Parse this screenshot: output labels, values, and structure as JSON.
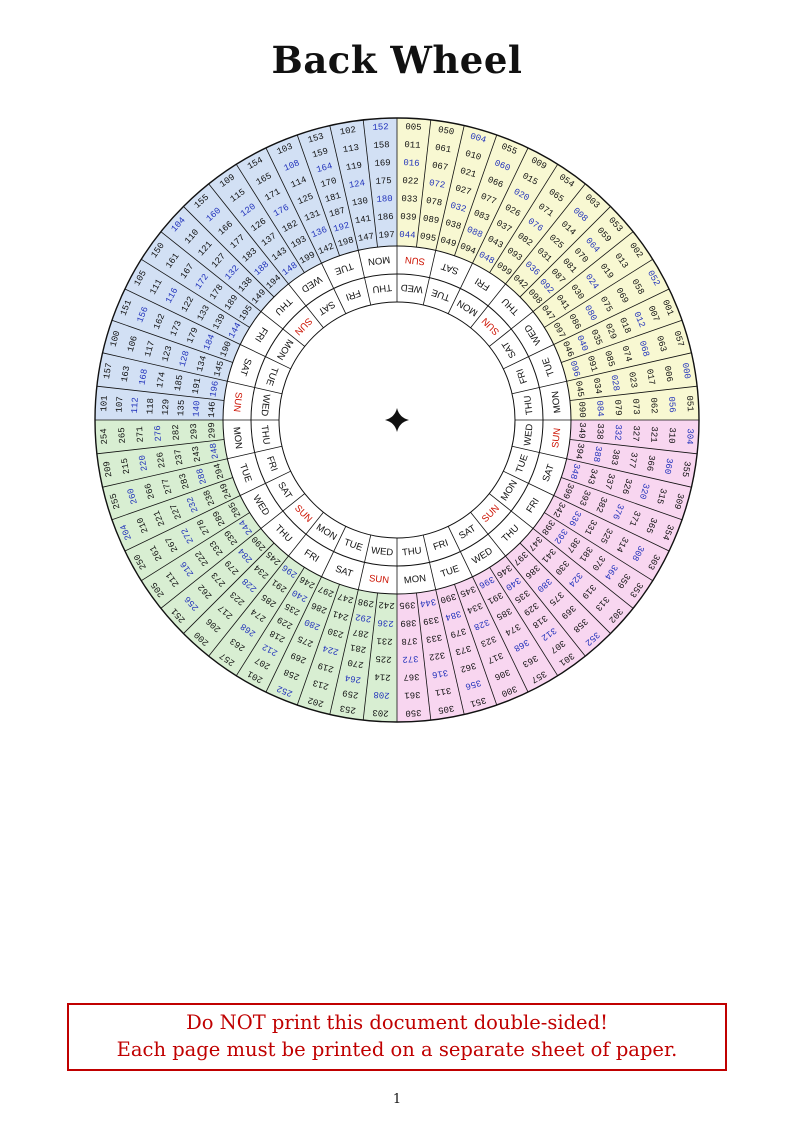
{
  "title": "Back Wheel",
  "page_number": "1",
  "warning": {
    "line1": "Do NOT print this document double-sided!",
    "line2": "Each page must be printed on a separate sheet of paper."
  },
  "wheel": {
    "colors": {
      "ink": "#111111",
      "sun": "#cc1100",
      "leap_year": "#2233bb",
      "quadrant_yellow": "#f8f8d2",
      "quadrant_pink": "#f8d6f0",
      "quadrant_green": "#d8eed2",
      "quadrant_blue": "#d2e0f4"
    },
    "outer_ring_start_deg": 0,
    "inner_ring_start_deg": 38.571,
    "outer_ring_days": [
      "SUN",
      "SAT",
      "FRI",
      "THU",
      "WED",
      "TUE",
      "MON",
      "SUN",
      "SAT",
      "FRI",
      "THU",
      "WED",
      "TUE",
      "MON",
      "SUN",
      "SAT",
      "FRI",
      "THU",
      "WED",
      "TUE",
      "MON",
      "SUN",
      "SAT",
      "FRI",
      "THU",
      "WED",
      "TUE",
      "MON"
    ],
    "inner_ring_days": [
      "SUN",
      "SAT",
      "FRI",
      "THU",
      "WED",
      "TUE",
      "MON",
      "SUN",
      "SAT",
      "FRI",
      "THU",
      "WED",
      "TUE",
      "MON",
      "SUN",
      "SAT",
      "FRI",
      "THU",
      "WED",
      "TUE",
      "MON",
      "SUN",
      "SAT",
      "FRI",
      "THU",
      "WED",
      "TUE",
      "MON"
    ],
    "center_marker": "four-pointed-star",
    "quadrants": [
      {
        "name": "years-000-099",
        "color_key": "quadrant_yellow",
        "start_deg": 0,
        "sectors": [
          [
            "005",
            "011",
            "016",
            "022",
            "033",
            "039",
            "044"
          ],
          [
            "050",
            "061",
            "067",
            "072",
            "078",
            "089",
            "095"
          ],
          [
            "004",
            "010",
            "021",
            "027",
            "032",
            "038",
            "049"
          ],
          [
            "055",
            "060",
            "066",
            "077",
            "083",
            "088",
            "094"
          ],
          [
            "009",
            "015",
            "020",
            "026",
            "037",
            "043",
            "048"
          ],
          [
            "054",
            "065",
            "071",
            "076",
            "082",
            "093",
            "099"
          ],
          [
            "003",
            "008",
            "014",
            "025",
            "031",
            "036",
            "042"
          ],
          [
            "053",
            "059",
            "064",
            "070",
            "081",
            "087",
            "092",
            "098"
          ],
          [
            "002",
            "013",
            "019",
            "024",
            "030",
            "041",
            "047"
          ],
          [
            "052",
            "058",
            "069",
            "075",
            "080",
            "086",
            "097"
          ],
          [
            "001",
            "007",
            "012",
            "018",
            "029",
            "035",
            "040",
            "046"
          ],
          [
            "057",
            "063",
            "068",
            "074",
            "085",
            "091",
            "096"
          ],
          [
            "000",
            "006",
            "017",
            "023",
            "028",
            "034",
            "045"
          ],
          [
            "051",
            "056",
            "062",
            "073",
            "079",
            "084",
            "090"
          ]
        ]
      },
      {
        "name": "years-300-399",
        "color_key": "quadrant_pink",
        "start_deg": 90,
        "sectors": [
          [
            "304",
            "310",
            "321",
            "327",
            "332",
            "338",
            "349"
          ],
          [
            "355",
            "360",
            "366",
            "377",
            "383",
            "388",
            "394"
          ],
          [
            "309",
            "315",
            "320",
            "326",
            "337",
            "343",
            "348"
          ],
          [
            "354",
            "365",
            "371",
            "376",
            "382",
            "393",
            "399"
          ],
          [
            "303",
            "308",
            "314",
            "325",
            "331",
            "336",
            "342"
          ],
          [
            "353",
            "359",
            "364",
            "370",
            "381",
            "387",
            "392",
            "398"
          ],
          [
            "302",
            "313",
            "319",
            "324",
            "330",
            "341",
            "347"
          ],
          [
            "352",
            "358",
            "369",
            "375",
            "380",
            "386",
            "397"
          ],
          [
            "301",
            "307",
            "312",
            "318",
            "329",
            "335",
            "340",
            "346"
          ],
          [
            "357",
            "363",
            "368",
            "374",
            "385",
            "391",
            "396"
          ],
          [
            "300",
            "306",
            "317",
            "323",
            "328",
            "334",
            "345"
          ],
          [
            "351",
            "356",
            "362",
            "373",
            "379",
            "384",
            "390"
          ],
          [
            "305",
            "311",
            "316",
            "322",
            "333",
            "339",
            "344"
          ],
          [
            "350",
            "361",
            "367",
            "372",
            "378",
            "389",
            "395"
          ]
        ]
      },
      {
        "name": "years-200-299",
        "color_key": "quadrant_green",
        "start_deg": 180,
        "sectors": [
          [
            "203",
            "208",
            "214",
            "225",
            "231",
            "236",
            "242"
          ],
          [
            "253",
            "259",
            "264",
            "270",
            "281",
            "287",
            "292",
            "298"
          ],
          [
            "202",
            "213",
            "219",
            "224",
            "230",
            "241",
            "247"
          ],
          [
            "252",
            "258",
            "269",
            "275",
            "280",
            "286",
            "297"
          ],
          [
            "201",
            "207",
            "212",
            "218",
            "229",
            "235",
            "240",
            "246"
          ],
          [
            "257",
            "263",
            "268",
            "274",
            "285",
            "291",
            "296"
          ],
          [
            "200",
            "206",
            "217",
            "223",
            "228",
            "234",
            "245"
          ],
          [
            "251",
            "256",
            "262",
            "273",
            "279",
            "284",
            "290"
          ],
          [
            "205",
            "211",
            "216",
            "222",
            "233",
            "239",
            "244"
          ],
          [
            "250",
            "261",
            "267",
            "272",
            "278",
            "289",
            "295"
          ],
          [
            "204",
            "210",
            "221",
            "227",
            "232",
            "238",
            "249"
          ],
          [
            "255",
            "260",
            "266",
            "277",
            "283",
            "288",
            "294"
          ],
          [
            "209",
            "215",
            "220",
            "226",
            "237",
            "243",
            "248"
          ],
          [
            "254",
            "265",
            "271",
            "276",
            "282",
            "293",
            "299"
          ]
        ]
      },
      {
        "name": "years-100-199",
        "color_key": "quadrant_blue",
        "start_deg": 270,
        "sectors": [
          [
            "101",
            "107",
            "112",
            "118",
            "129",
            "135",
            "140",
            "146"
          ],
          [
            "157",
            "163",
            "168",
            "174",
            "185",
            "191",
            "196"
          ],
          [
            "100",
            "106",
            "117",
            "123",
            "128",
            "134",
            "145"
          ],
          [
            "151",
            "156",
            "162",
            "173",
            "179",
            "184",
            "190"
          ],
          [
            "105",
            "111",
            "116",
            "122",
            "133",
            "139",
            "144"
          ],
          [
            "150",
            "161",
            "167",
            "172",
            "178",
            "189",
            "195"
          ],
          [
            "104",
            "110",
            "121",
            "127",
            "132",
            "138",
            "149"
          ],
          [
            "155",
            "160",
            "166",
            "177",
            "183",
            "188",
            "194"
          ],
          [
            "109",
            "115",
            "120",
            "126",
            "137",
            "143",
            "148"
          ],
          [
            "154",
            "165",
            "171",
            "176",
            "182",
            "193",
            "199"
          ],
          [
            "103",
            "108",
            "114",
            "125",
            "131",
            "136",
            "142"
          ],
          [
            "153",
            "159",
            "164",
            "170",
            "181",
            "187",
            "192",
            "198"
          ],
          [
            "102",
            "113",
            "119",
            "124",
            "130",
            "141",
            "147"
          ],
          [
            "152",
            "158",
            "169",
            "175",
            "180",
            "186",
            "197"
          ]
        ]
      }
    ]
  }
}
